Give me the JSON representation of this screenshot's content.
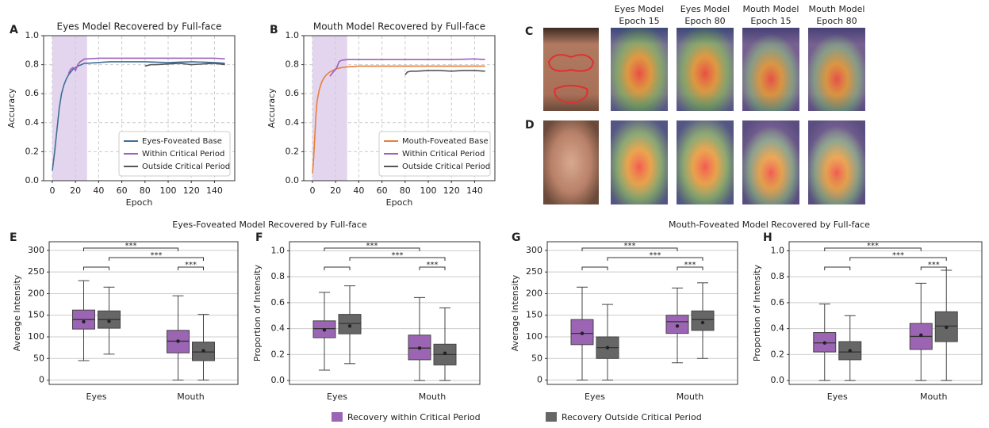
{
  "figure": {
    "group_titles": [
      "Eyes-Foveated Model Recovered by Full-face",
      "Mouth-Foveated Model Recovered by Full-face"
    ],
    "legend": [
      {
        "name": "Recovery within Critical Period",
        "color": "#9b65b3"
      },
      {
        "name": "Recovery Outside Critical Period",
        "color": "#666666"
      }
    ]
  },
  "heatmaps": {
    "panels": [
      "C",
      "D"
    ],
    "column_titles": [
      [
        "Eyes Model",
        "Epoch 15"
      ],
      [
        "Eyes Model",
        "Epoch 80"
      ],
      [
        "Mouth Model",
        "Epoch 15"
      ],
      [
        "Mouth Model",
        "Epoch 80"
      ]
    ]
  },
  "chart_data": [
    {
      "type": "line",
      "panel": "A",
      "title": "Eyes Model Recovered by Full-face",
      "x_label": "Epoch",
      "y_label": "Accuracy",
      "xlim": [
        -7.5,
        157.5
      ],
      "ylim": [
        0,
        1
      ],
      "xticks": [
        0,
        20,
        40,
        60,
        80,
        100,
        120,
        140
      ],
      "yticks": [
        {
          "value": 0,
          "label": "0.0"
        },
        0.2,
        0.4,
        0.6,
        0.8,
        {
          "value": 1,
          "label": "1.0"
        }
      ],
      "grid": true,
      "legend_loc": "lower right",
      "shaded_region": [
        0,
        30
      ],
      "shaded_color": "#e3d5ee",
      "series": [
        {
          "name": "Eyes-Foveated Base",
          "color": "#3f6e96",
          "x": [
            0,
            2,
            4,
            6,
            8,
            10,
            12,
            14,
            16,
            18,
            20,
            22,
            25,
            28,
            30,
            40,
            50,
            60,
            80,
            100,
            120,
            140,
            149
          ],
          "values": [
            0.07,
            0.2,
            0.35,
            0.5,
            0.6,
            0.66,
            0.7,
            0.73,
            0.75,
            0.77,
            0.78,
            0.79,
            0.8,
            0.81,
            0.81,
            0.815,
            0.82,
            0.82,
            0.82,
            0.815,
            0.82,
            0.815,
            0.81
          ]
        },
        {
          "name": "Within Critical Period",
          "color": "#a05fc0",
          "x": [
            14,
            16,
            18,
            20,
            22,
            24,
            26,
            28,
            30,
            40,
            60,
            80,
            100,
            120,
            140,
            149
          ],
          "values": [
            0.74,
            0.77,
            0.78,
            0.76,
            0.8,
            0.82,
            0.83,
            0.84,
            0.84,
            0.845,
            0.845,
            0.845,
            0.845,
            0.845,
            0.845,
            0.84
          ]
        },
        {
          "name": "Outside Critical Period",
          "color": "#555555",
          "x": [
            80,
            85,
            90,
            100,
            110,
            120,
            130,
            140,
            149
          ],
          "values": [
            0.79,
            0.8,
            0.8,
            0.805,
            0.81,
            0.8,
            0.805,
            0.81,
            0.8
          ]
        }
      ]
    },
    {
      "type": "line",
      "panel": "B",
      "title": "Mouth Model Recovered by Full-face",
      "x_label": "Epoch",
      "y_label": "Accuracy",
      "xlim": [
        -7.5,
        157.5
      ],
      "ylim": [
        0,
        1
      ],
      "xticks": [
        0,
        20,
        40,
        60,
        80,
        100,
        120,
        140
      ],
      "yticks": [
        {
          "value": 0,
          "label": "0.0"
        },
        0.2,
        0.4,
        0.6,
        0.8,
        {
          "value": 1,
          "label": "1.0"
        }
      ],
      "grid": true,
      "legend_loc": "lower right",
      "shaded_region": [
        0,
        30
      ],
      "shaded_color": "#e3d5ee",
      "series": [
        {
          "name": "Mouth-Foveated Base",
          "color": "#e8803a",
          "x": [
            0,
            1,
            2,
            3,
            4,
            6,
            8,
            10,
            12,
            15,
            20,
            25,
            30,
            40,
            60,
            80,
            100,
            120,
            140,
            149
          ],
          "values": [
            0.05,
            0.15,
            0.3,
            0.45,
            0.55,
            0.63,
            0.68,
            0.71,
            0.73,
            0.75,
            0.77,
            0.78,
            0.785,
            0.79,
            0.79,
            0.79,
            0.79,
            0.79,
            0.79,
            0.79
          ]
        },
        {
          "name": "Within Critical Period",
          "color": "#a05fc0",
          "x": [
            15,
            17,
            19,
            21,
            23,
            25,
            30,
            40,
            60,
            80,
            100,
            120,
            140,
            149
          ],
          "values": [
            0.72,
            0.74,
            0.76,
            0.78,
            0.82,
            0.83,
            0.835,
            0.835,
            0.835,
            0.835,
            0.835,
            0.835,
            0.84,
            0.835
          ]
        },
        {
          "name": "Outside Critical Period",
          "color": "#555555",
          "x": [
            80,
            82,
            85,
            90,
            100,
            110,
            120,
            130,
            140,
            149
          ],
          "values": [
            0.73,
            0.75,
            0.755,
            0.755,
            0.76,
            0.76,
            0.755,
            0.76,
            0.76,
            0.755
          ]
        }
      ]
    },
    {
      "type": "box",
      "panel": "E",
      "y_label": "Average Intensity",
      "categories": [
        "Eyes",
        "Mouth"
      ],
      "ylim": [
        -10,
        320
      ],
      "yticks": [
        0,
        50,
        100,
        150,
        200,
        250,
        300
      ],
      "grid": true,
      "annotations": [
        "***",
        "***",
        "***"
      ],
      "series": [
        {
          "color": "#9b65b3",
          "min": [
            45,
            0
          ],
          "q1": [
            118,
            63
          ],
          "median": [
            140,
            90
          ],
          "q3": [
            162,
            115
          ],
          "max": [
            230,
            195
          ],
          "mean": [
            135,
            90
          ]
        },
        {
          "color": "#666666",
          "min": [
            60,
            0
          ],
          "q1": [
            120,
            45
          ],
          "median": [
            140,
            65
          ],
          "q3": [
            160,
            88
          ],
          "max": [
            215,
            152
          ],
          "mean": [
            136,
            68
          ]
        }
      ]
    },
    {
      "type": "box",
      "panel": "F",
      "y_label": "Proportion of Intensity",
      "categories": [
        "Eyes",
        "Mouth"
      ],
      "ylim": [
        -0.03,
        1.07
      ],
      "yticks": [
        {
          "value": 0,
          "label": "0.0"
        },
        0.2,
        0.4,
        0.6,
        0.8,
        {
          "value": 1,
          "label": "1.0"
        }
      ],
      "grid": true,
      "annotations": [
        "***",
        "***",
        "***"
      ],
      "series": [
        {
          "color": "#9b65b3",
          "min": [
            0.08,
            0
          ],
          "q1": [
            0.33,
            0.16
          ],
          "median": [
            0.4,
            0.25
          ],
          "q3": [
            0.46,
            0.35
          ],
          "max": [
            0.68,
            0.64
          ],
          "mean": [
            0.39,
            0.25
          ]
        },
        {
          "color": "#666666",
          "min": [
            0.13,
            0
          ],
          "q1": [
            0.36,
            0.12
          ],
          "median": [
            0.44,
            0.2
          ],
          "q3": [
            0.51,
            0.28
          ],
          "max": [
            0.73,
            0.56
          ],
          "mean": [
            0.42,
            0.21
          ]
        }
      ]
    },
    {
      "type": "box",
      "panel": "G",
      "y_label": "Average Intensity",
      "categories": [
        "Eyes",
        "Mouth"
      ],
      "ylim": [
        -10,
        320
      ],
      "yticks": [
        0,
        50,
        100,
        150,
        200,
        250,
        300
      ],
      "grid": true,
      "annotations": [
        "***",
        "***",
        "***"
      ],
      "series": [
        {
          "color": "#9b65b3",
          "min": [
            0,
            40
          ],
          "q1": [
            82,
            108
          ],
          "median": [
            108,
            135
          ],
          "q3": [
            140,
            150
          ],
          "max": [
            215,
            213
          ],
          "mean": [
            108,
            125
          ]
        },
        {
          "color": "#666666",
          "min": [
            0,
            50
          ],
          "q1": [
            50,
            115
          ],
          "median": [
            75,
            140
          ],
          "q3": [
            100,
            160
          ],
          "max": [
            175,
            225
          ],
          "mean": [
            75,
            133
          ]
        }
      ]
    },
    {
      "type": "box",
      "panel": "H",
      "y_label": "Proportion of Intensity",
      "categories": [
        "Eyes",
        "Mouth"
      ],
      "ylim": [
        -0.03,
        1.07
      ],
      "yticks": [
        {
          "value": 0,
          "label": "0.0"
        },
        0.2,
        0.4,
        0.6,
        0.8,
        {
          "value": 1,
          "label": "1.0"
        }
      ],
      "grid": true,
      "annotations": [
        "***",
        "***",
        "***"
      ],
      "series": [
        {
          "color": "#9b65b3",
          "min": [
            0,
            0
          ],
          "q1": [
            0.22,
            0.24
          ],
          "median": [
            0.29,
            0.34
          ],
          "q3": [
            0.37,
            0.44
          ],
          "max": [
            0.59,
            0.75
          ],
          "mean": [
            0.29,
            0.35
          ]
        },
        {
          "color": "#666666",
          "min": [
            0,
            0
          ],
          "q1": [
            0.16,
            0.3
          ],
          "median": [
            0.22,
            0.42
          ],
          "q3": [
            0.3,
            0.53
          ],
          "max": [
            0.5,
            0.85
          ],
          "mean": [
            0.23,
            0.41
          ]
        }
      ]
    }
  ]
}
